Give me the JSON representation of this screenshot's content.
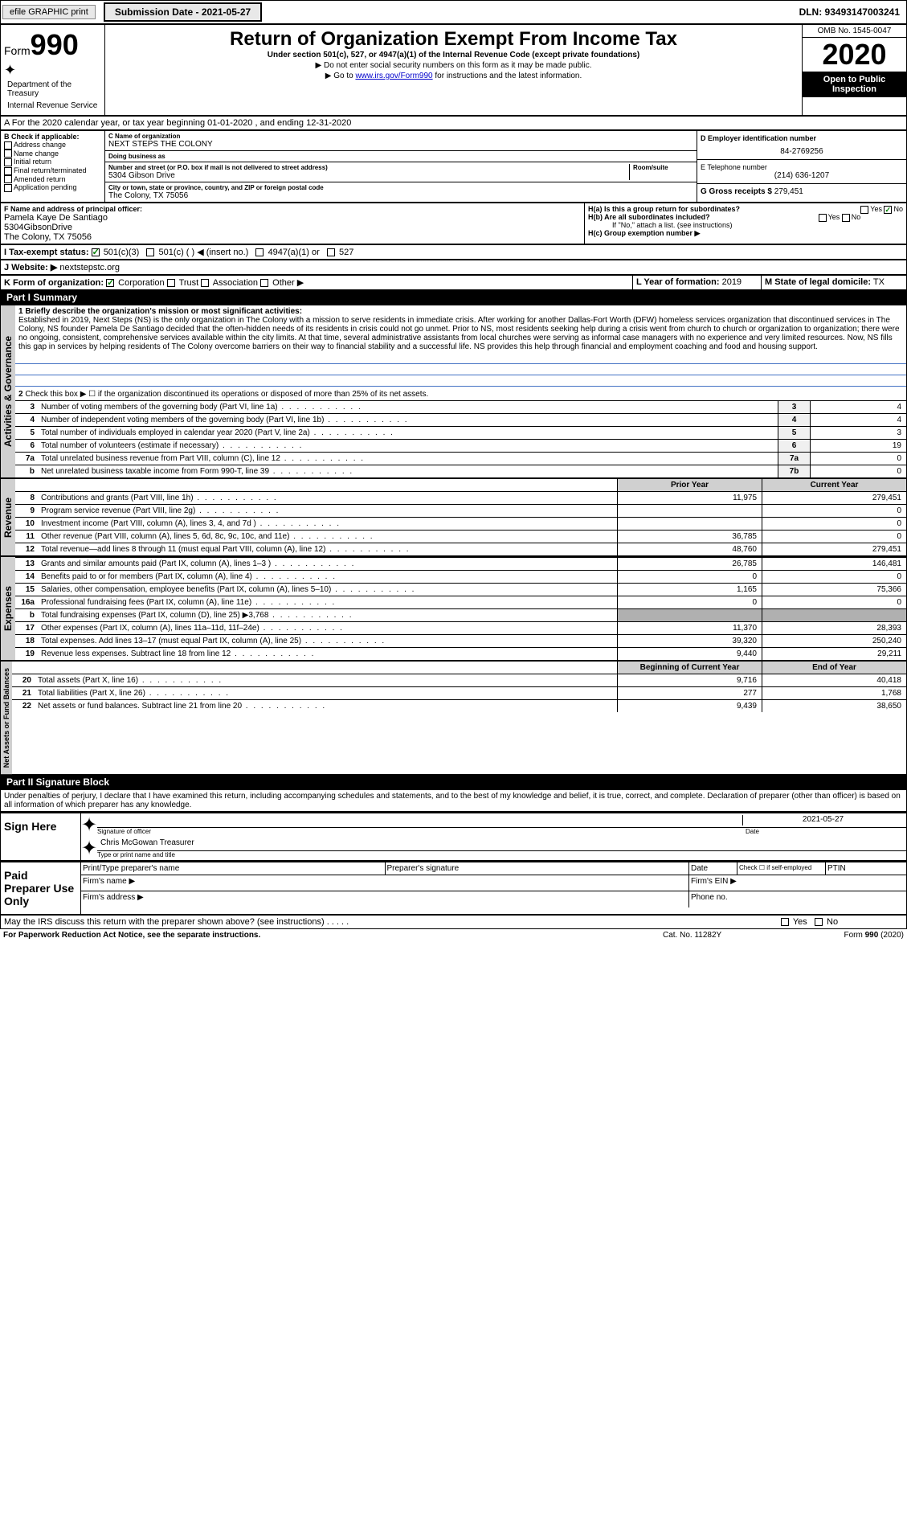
{
  "header": {
    "efile": "efile GRAPHIC print",
    "submission_label": "Submission Date - 2021-05-27",
    "dln": "DLN: 93493147003241"
  },
  "form_id": {
    "form_word": "Form",
    "form_num": "990",
    "dept": "Department of the Treasury",
    "irs": "Internal Revenue Service"
  },
  "title": {
    "main": "Return of Organization Exempt From Income Tax",
    "sub": "Under section 501(c), 527, or 4947(a)(1) of the Internal Revenue Code (except private foundations)",
    "note1": "▶ Do not enter social security numbers on this form as it may be made public.",
    "note2_pre": "▶ Go to ",
    "note2_link": "www.irs.gov/Form990",
    "note2_post": " for instructions and the latest information."
  },
  "right_box": {
    "omb": "OMB No. 1545-0047",
    "year": "2020",
    "open": "Open to Public Inspection"
  },
  "line_a": {
    "text": "A For the 2020 calendar year, or tax year beginning 01-01-2020   , and ending 12-31-2020"
  },
  "box_b": {
    "label": "B Check if applicable:",
    "opts": [
      "Address change",
      "Name change",
      "Initial return",
      "Final return/terminated",
      "Amended return",
      "Application pending"
    ]
  },
  "box_c": {
    "name_label": "C Name of organization",
    "name": "NEXT STEPS THE COLONY",
    "dba_label": "Doing business as",
    "dba": "",
    "addr_label": "Number and street (or P.O. box if mail is not delivered to street address)",
    "room_label": "Room/suite",
    "addr": "5304 Gibson Drive",
    "city_label": "City or town, state or province, country, and ZIP or foreign postal code",
    "city": "The Colony, TX  75056"
  },
  "box_d": {
    "label": "D Employer identification number",
    "ein": "84-2769256"
  },
  "box_e": {
    "label": "E Telephone number",
    "phone": "(214) 636-1207"
  },
  "box_g": {
    "label": "G Gross receipts $",
    "val": "279,451"
  },
  "box_f": {
    "label": "F  Name and address of principal officer:",
    "name": "Pamela Kaye De Santiago",
    "addr1": "5304GibsonDrive",
    "addr2": "The Colony, TX  75056"
  },
  "box_h": {
    "ha_label": "H(a)  Is this a group return for subordinates?",
    "hb_label": "H(b)  Are all subordinates included?",
    "hb_note": "If \"No,\" attach a list. (see instructions)",
    "hc_label": "H(c)  Group exemption number ▶",
    "yes": "Yes",
    "no": "No"
  },
  "tax_exempt": {
    "label": "I  Tax-exempt status:",
    "opt1": "501(c)(3)",
    "opt2": "501(c) (  ) ◀ (insert no.)",
    "opt3": "4947(a)(1) or",
    "opt4": "527"
  },
  "website": {
    "label": "J  Website: ▶",
    "val": "nextstepstc.org"
  },
  "line_k": {
    "label": "K Form of organization:",
    "opts": [
      "Corporation",
      "Trust",
      "Association",
      "Other ▶"
    ]
  },
  "line_l": {
    "label": "L Year of formation:",
    "val": "2019"
  },
  "line_m": {
    "label": "M State of legal domicile:",
    "val": "TX"
  },
  "part1": {
    "header": "Part I      Summary",
    "q1_label": "1  Briefly describe the organization's mission or most significant activities:",
    "q1_text": "Established in 2019, Next Steps (NS) is the only organization in The Colony with a mission to serve residents in immediate crisis. After working for another Dallas-Fort Worth (DFW) homeless services organization that discontinued services in The Colony, NS founder Pamela De Santiago decided that the often-hidden needs of its residents in crisis could not go unmet. Prior to NS, most residents seeking help during a crisis went from church to church or organization to organization; there were no ongoing, consistent, comprehensive services available within the city limits. At that time, several administrative assistants from local churches were serving as informal case managers with no experience and very limited resources. Now, NS fills this gap in services by helping residents of The Colony overcome barriers on their way to financial stability and a successful life. NS provides this help through financial and employment coaching and food and housing support.",
    "q2": "Check this box ▶ ☐ if the organization discontinued its operations or disposed of more than 25% of its net assets.",
    "vert1": "Activities & Governance",
    "rows": [
      {
        "n": "3",
        "t": "Number of voting members of the governing body (Part VI, line 1a)",
        "box": "3",
        "v": "4"
      },
      {
        "n": "4",
        "t": "Number of independent voting members of the governing body (Part VI, line 1b)",
        "box": "4",
        "v": "4"
      },
      {
        "n": "5",
        "t": "Total number of individuals employed in calendar year 2020 (Part V, line 2a)",
        "box": "5",
        "v": "3"
      },
      {
        "n": "6",
        "t": "Total number of volunteers (estimate if necessary)",
        "box": "6",
        "v": "19"
      },
      {
        "n": "7a",
        "t": "Total unrelated business revenue from Part VIII, column (C), line 12",
        "box": "7a",
        "v": "0"
      },
      {
        "n": "b",
        "t": "Net unrelated business taxable income from Form 990-T, line 39",
        "box": "7b",
        "v": "0"
      }
    ]
  },
  "revenue": {
    "vert": "Revenue",
    "prior_h": "Prior Year",
    "curr_h": "Current Year",
    "rows": [
      {
        "n": "8",
        "t": "Contributions and grants (Part VIII, line 1h)",
        "p": "11,975",
        "c": "279,451"
      },
      {
        "n": "9",
        "t": "Program service revenue (Part VIII, line 2g)",
        "p": "",
        "c": "0"
      },
      {
        "n": "10",
        "t": "Investment income (Part VIII, column (A), lines 3, 4, and 7d )",
        "p": "",
        "c": "0"
      },
      {
        "n": "11",
        "t": "Other revenue (Part VIII, column (A), lines 5, 6d, 8c, 9c, 10c, and 11e)",
        "p": "36,785",
        "c": "0"
      },
      {
        "n": "12",
        "t": "Total revenue—add lines 8 through 11 (must equal Part VIII, column (A), line 12)",
        "p": "48,760",
        "c": "279,451"
      }
    ]
  },
  "expenses": {
    "vert": "Expenses",
    "rows": [
      {
        "n": "13",
        "t": "Grants and similar amounts paid (Part IX, column (A), lines 1–3 )",
        "p": "26,785",
        "c": "146,481"
      },
      {
        "n": "14",
        "t": "Benefits paid to or for members (Part IX, column (A), line 4)",
        "p": "0",
        "c": "0"
      },
      {
        "n": "15",
        "t": "Salaries, other compensation, employee benefits (Part IX, column (A), lines 5–10)",
        "p": "1,165",
        "c": "75,366"
      },
      {
        "n": "16a",
        "t": "Professional fundraising fees (Part IX, column (A), line 11e)",
        "p": "0",
        "c": "0"
      },
      {
        "n": "b",
        "t": "Total fundraising expenses (Part IX, column (D), line 25) ▶3,768",
        "p": "gray",
        "c": "gray"
      },
      {
        "n": "17",
        "t": "Other expenses (Part IX, column (A), lines 11a–11d, 11f–24e)",
        "p": "11,370",
        "c": "28,393"
      },
      {
        "n": "18",
        "t": "Total expenses. Add lines 13–17 (must equal Part IX, column (A), line 25)",
        "p": "39,320",
        "c": "250,240"
      },
      {
        "n": "19",
        "t": "Revenue less expenses. Subtract line 18 from line 12",
        "p": "9,440",
        "c": "29,211"
      }
    ]
  },
  "netassets": {
    "vert": "Net Assets or Fund Balances",
    "begin_h": "Beginning of Current Year",
    "end_h": "End of Year",
    "rows": [
      {
        "n": "20",
        "t": "Total assets (Part X, line 16)",
        "p": "9,716",
        "c": "40,418"
      },
      {
        "n": "21",
        "t": "Total liabilities (Part X, line 26)",
        "p": "277",
        "c": "1,768"
      },
      {
        "n": "22",
        "t": "Net assets or fund balances. Subtract line 21 from line 20",
        "p": "9,439",
        "c": "38,650"
      }
    ]
  },
  "part2": {
    "header": "Part II      Signature Block",
    "perjury": "Under penalties of perjury, I declare that I have examined this return, including accompanying schedules and statements, and to the best of my knowledge and belief, it is true, correct, and complete. Declaration of preparer (other than officer) is based on all information of which preparer has any knowledge."
  },
  "sign": {
    "here": "Sign Here",
    "sig_officer": "Signature of officer",
    "date_label": "Date",
    "date": "2021-05-27",
    "name": "Chris McGowan  Treasurer",
    "name_label": "Type or print name and title"
  },
  "paid": {
    "label": "Paid Preparer Use Only",
    "col1": "Print/Type preparer's name",
    "col2": "Preparer's signature",
    "col3": "Date",
    "col4": "Check ☐ if self-employed",
    "col5": "PTIN",
    "firm_name": "Firm's name   ▶",
    "firm_ein": "Firm's EIN ▶",
    "firm_addr": "Firm's address ▶",
    "phone": "Phone no."
  },
  "footer": {
    "discuss": "May the IRS discuss this return with the preparer shown above? (see instructions)",
    "paperwork": "For Paperwork Reduction Act Notice, see the separate instructions.",
    "cat": "Cat. No. 11282Y",
    "form": "Form 990 (2020)",
    "yes": "Yes",
    "no": "No"
  },
  "colors": {
    "link": "#0000cc",
    "gray_bg": "#d0d0d0",
    "dark_gray": "#b0b0b0",
    "blue_line": "#4472c4"
  }
}
